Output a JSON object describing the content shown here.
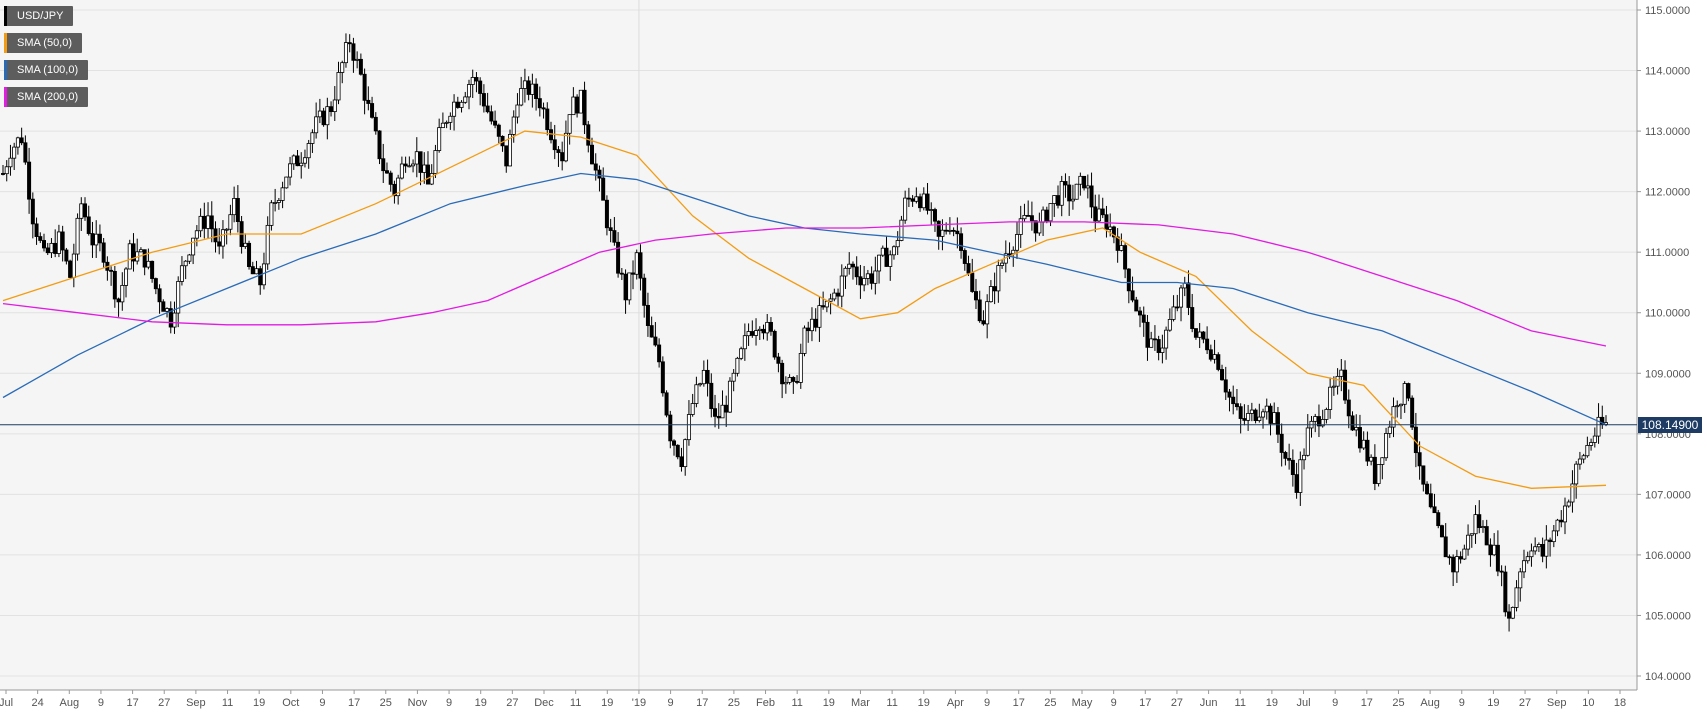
{
  "chart_data": {
    "type": "candlestick",
    "symbol": "USD/JPY",
    "ylim": [
      104.0,
      115.0
    ],
    "y_ticks": [
      "115.0000",
      "114.0000",
      "113.0000",
      "112.0000",
      "111.0000",
      "110.0000",
      "109.0000",
      "108.0000",
      "107.0000",
      "106.0000",
      "105.0000",
      "104.0000"
    ],
    "x_ticks": [
      "Jul",
      "24",
      "Aug",
      "9",
      "17",
      "27",
      "Sep",
      "11",
      "19",
      "Oct",
      "9",
      "17",
      "25",
      "Nov",
      "9",
      "19",
      "27",
      "Dec",
      "11",
      "19",
      "'19",
      "9",
      "17",
      "25",
      "Feb",
      "11",
      "19",
      "Mar",
      "11",
      "19",
      "Apr",
      "9",
      "17",
      "25",
      "May",
      "9",
      "17",
      "27",
      "Jun",
      "11",
      "19",
      "Jul",
      "9",
      "17",
      "25",
      "Aug",
      "9",
      "19",
      "27",
      "Sep",
      "10",
      "18"
    ],
    "last_price": "108.14900",
    "grid": true,
    "legend_position": "top-left",
    "series": [
      {
        "name": "USD/JPY",
        "color": "#000000"
      },
      {
        "name": "SMA (50,0)",
        "color": "#f39c12"
      },
      {
        "name": "SMA (100,0)",
        "color": "#2a6bb8"
      },
      {
        "name": "SMA (200,0)",
        "color": "#e11be1"
      }
    ],
    "price_path": [
      [
        0,
        112.3
      ],
      [
        2,
        112.7
      ],
      [
        5,
        112.9
      ],
      [
        8,
        111.6
      ],
      [
        11,
        110.9
      ],
      [
        15,
        111.2
      ],
      [
        18,
        110.6
      ],
      [
        21,
        111.8
      ],
      [
        24,
        111.2
      ],
      [
        27,
        111.0
      ],
      [
        31,
        110.2
      ],
      [
        34,
        111.0
      ],
      [
        38,
        110.9
      ],
      [
        41,
        110.4
      ],
      [
        45,
        109.9
      ],
      [
        48,
        110.7
      ],
      [
        51,
        111.3
      ],
      [
        55,
        111.6
      ],
      [
        58,
        111.0
      ],
      [
        62,
        111.8
      ],
      [
        66,
        110.7
      ],
      [
        69,
        110.5
      ],
      [
        72,
        111.7
      ],
      [
        76,
        112.3
      ],
      [
        80,
        112.6
      ],
      [
        84,
        113.1
      ],
      [
        88,
        113.4
      ],
      [
        91,
        114.1
      ],
      [
        93,
        114.5
      ],
      [
        96,
        113.9
      ],
      [
        99,
        113.1
      ],
      [
        102,
        112.4
      ],
      [
        105,
        112.0
      ],
      [
        108,
        112.6
      ],
      [
        111,
        112.6
      ],
      [
        114,
        112.1
      ],
      [
        117,
        112.9
      ],
      [
        120,
        113.4
      ],
      [
        123,
        113.6
      ],
      [
        126,
        113.9
      ],
      [
        129,
        113.5
      ],
      [
        132,
        113.0
      ],
      [
        135,
        112.5
      ],
      [
        138,
        113.6
      ],
      [
        141,
        113.7
      ],
      [
        144,
        113.5
      ],
      [
        147,
        113.0
      ],
      [
        150,
        112.6
      ],
      [
        152,
        113.4
      ],
      [
        155,
        113.5
      ],
      [
        158,
        112.6
      ],
      [
        161,
        111.8
      ],
      [
        164,
        111.0
      ],
      [
        167,
        110.3
      ],
      [
        170,
        110.9
      ],
      [
        173,
        109.7
      ],
      [
        176,
        109.2
      ],
      [
        179,
        108.0
      ],
      [
        182,
        107.6
      ],
      [
        185,
        108.5
      ],
      [
        188,
        109.0
      ],
      [
        191,
        108.2
      ],
      [
        194,
        108.5
      ],
      [
        197,
        109.1
      ],
      [
        200,
        109.7
      ],
      [
        203,
        109.9
      ],
      [
        206,
        109.6
      ],
      [
        209,
        109.0
      ],
      [
        212,
        108.7
      ],
      [
        215,
        109.6
      ],
      [
        218,
        109.9
      ],
      [
        221,
        110.1
      ],
      [
        224,
        110.4
      ],
      [
        227,
        110.8
      ],
      [
        230,
        110.6
      ],
      [
        233,
        110.6
      ],
      [
        236,
        110.9
      ],
      [
        239,
        111.0
      ],
      [
        242,
        111.8
      ],
      [
        245,
        112.0
      ],
      [
        248,
        111.7
      ],
      [
        251,
        111.2
      ],
      [
        254,
        111.5
      ],
      [
        257,
        111.2
      ],
      [
        260,
        110.3
      ],
      [
        263,
        109.9
      ],
      [
        266,
        110.5
      ],
      [
        269,
        111.0
      ],
      [
        272,
        111.3
      ],
      [
        275,
        111.6
      ],
      [
        278,
        111.4
      ],
      [
        281,
        111.8
      ],
      [
        284,
        112.0
      ],
      [
        287,
        111.9
      ],
      [
        290,
        112.2
      ],
      [
        293,
        111.6
      ],
      [
        296,
        111.5
      ],
      [
        299,
        111.2
      ],
      [
        302,
        110.5
      ],
      [
        305,
        109.9
      ],
      [
        308,
        109.4
      ],
      [
        311,
        109.5
      ],
      [
        314,
        110.0
      ],
      [
        317,
        110.4
      ],
      [
        320,
        109.6
      ],
      [
        323,
        109.5
      ],
      [
        326,
        109.2
      ],
      [
        329,
        108.6
      ],
      [
        332,
        108.2
      ],
      [
        335,
        108.3
      ],
      [
        338,
        108.5
      ],
      [
        341,
        108.2
      ],
      [
        344,
        107.6
      ],
      [
        347,
        107.2
      ],
      [
        350,
        108.0
      ],
      [
        353,
        108.3
      ],
      [
        356,
        108.6
      ],
      [
        359,
        108.9
      ],
      [
        362,
        108.2
      ],
      [
        365,
        107.8
      ],
      [
        368,
        107.3
      ],
      [
        371,
        108.0
      ],
      [
        374,
        108.6
      ],
      [
        377,
        108.7
      ],
      [
        380,
        107.3
      ],
      [
        383,
        106.7
      ],
      [
        386,
        106.2
      ],
      [
        389,
        105.8
      ],
      [
        392,
        106.1
      ],
      [
        395,
        106.6
      ],
      [
        398,
        106.3
      ],
      [
        401,
        105.9
      ],
      [
        404,
        104.9
      ],
      [
        407,
        105.8
      ],
      [
        410,
        106.2
      ],
      [
        413,
        106.0
      ],
      [
        416,
        106.4
      ],
      [
        419,
        106.8
      ],
      [
        422,
        107.4
      ],
      [
        425,
        107.8
      ],
      [
        428,
        108.1
      ],
      [
        430,
        108.15
      ]
    ],
    "sma50": [
      [
        0,
        110.2
      ],
      [
        20,
        110.6
      ],
      [
        40,
        111.0
      ],
      [
        60,
        111.3
      ],
      [
        80,
        111.3
      ],
      [
        100,
        111.8
      ],
      [
        120,
        112.4
      ],
      [
        140,
        113.0
      ],
      [
        155,
        112.9
      ],
      [
        170,
        112.6
      ],
      [
        185,
        111.6
      ],
      [
        200,
        110.9
      ],
      [
        215,
        110.4
      ],
      [
        230,
        109.9
      ],
      [
        240,
        110.0
      ],
      [
        250,
        110.4
      ],
      [
        265,
        110.8
      ],
      [
        280,
        111.2
      ],
      [
        295,
        111.4
      ],
      [
        305,
        111.0
      ],
      [
        320,
        110.6
      ],
      [
        335,
        109.7
      ],
      [
        350,
        109.0
      ],
      [
        365,
        108.8
      ],
      [
        380,
        107.8
      ],
      [
        395,
        107.3
      ],
      [
        410,
        107.1
      ],
      [
        430,
        107.15
      ]
    ],
    "sma100": [
      [
        0,
        108.6
      ],
      [
        20,
        109.3
      ],
      [
        40,
        109.9
      ],
      [
        60,
        110.4
      ],
      [
        80,
        110.9
      ],
      [
        100,
        111.3
      ],
      [
        120,
        111.8
      ],
      [
        140,
        112.1
      ],
      [
        155,
        112.3
      ],
      [
        170,
        112.2
      ],
      [
        185,
        111.9
      ],
      [
        200,
        111.6
      ],
      [
        215,
        111.4
      ],
      [
        230,
        111.3
      ],
      [
        250,
        111.2
      ],
      [
        265,
        111.0
      ],
      [
        280,
        110.8
      ],
      [
        300,
        110.5
      ],
      [
        315,
        110.5
      ],
      [
        330,
        110.4
      ],
      [
        350,
        110.0
      ],
      [
        370,
        109.7
      ],
      [
        390,
        109.2
      ],
      [
        410,
        108.7
      ],
      [
        430,
        108.15
      ]
    ],
    "sma200": [
      [
        0,
        110.15
      ],
      [
        20,
        110.0
      ],
      [
        40,
        109.85
      ],
      [
        60,
        109.8
      ],
      [
        80,
        109.8
      ],
      [
        100,
        109.85
      ],
      [
        115,
        110.0
      ],
      [
        130,
        110.2
      ],
      [
        145,
        110.6
      ],
      [
        160,
        111.0
      ],
      [
        175,
        111.2
      ],
      [
        190,
        111.3
      ],
      [
        210,
        111.4
      ],
      [
        230,
        111.4
      ],
      [
        250,
        111.45
      ],
      [
        270,
        111.5
      ],
      [
        290,
        111.5
      ],
      [
        310,
        111.45
      ],
      [
        330,
        111.3
      ],
      [
        350,
        111.0
      ],
      [
        370,
        110.6
      ],
      [
        390,
        110.2
      ],
      [
        410,
        109.7
      ],
      [
        430,
        109.45
      ]
    ]
  }
}
